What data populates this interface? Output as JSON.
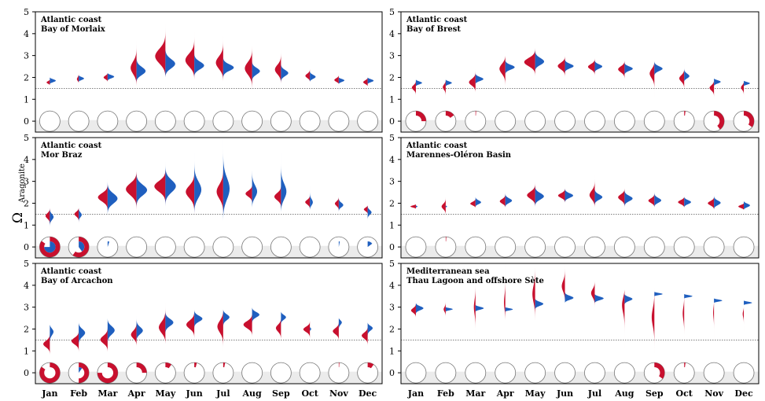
{
  "colors": {
    "red": "#c8102e",
    "blue": "#1f5fbf",
    "band": "#ebebeb",
    "ref": "#555555",
    "edge_blue": "#1f5fbf"
  },
  "y_axis_label_main": "Ω",
  "y_axis_label_sub": "Aragonite",
  "chart_data": [
    {
      "type": "violin",
      "panel": "top-left",
      "title_line1": "Atlantic coast",
      "title_line2": "Bay of Morlaix",
      "categories": [
        "Jan",
        "Feb",
        "Mar",
        "Apr",
        "May",
        "Jun",
        "Jul",
        "Aug",
        "Sep",
        "Oct",
        "Nov",
        "Dec"
      ],
      "ylim": [
        -0.5,
        5
      ],
      "yticks": [
        0,
        1,
        2,
        3,
        4,
        5
      ],
      "ref_line": 1.5,
      "red_center": [
        1.75,
        1.85,
        2.0,
        2.35,
        2.85,
        2.7,
        2.6,
        2.4,
        2.3,
        2.05,
        1.85,
        1.75
      ],
      "blue_center": [
        1.85,
        1.95,
        2.05,
        2.2,
        2.55,
        2.5,
        2.45,
        2.3,
        2.2,
        2.0,
        1.9,
        1.85
      ],
      "red_min": [
        1.65,
        1.75,
        1.8,
        1.6,
        2.0,
        1.9,
        1.8,
        1.4,
        1.7,
        1.8,
        1.7,
        1.6
      ],
      "red_max": [
        1.9,
        2.2,
        2.2,
        3.7,
        4.5,
        4.1,
        3.9,
        3.5,
        3.3,
        2.4,
        2.1,
        2.0
      ],
      "blue_min": [
        1.7,
        1.8,
        1.85,
        1.8,
        2.0,
        2.0,
        1.9,
        1.7,
        1.7,
        1.8,
        1.7,
        1.7
      ],
      "blue_max": [
        2.0,
        2.1,
        2.2,
        3.2,
        3.6,
        3.3,
        3.0,
        2.8,
        2.7,
        2.3,
        2.0,
        2.0
      ],
      "red_width": [
        0.25,
        0.18,
        0.3,
        0.5,
        0.9,
        0.75,
        0.6,
        0.55,
        0.5,
        0.35,
        0.35,
        0.35
      ],
      "blue_width": [
        0.45,
        0.4,
        0.5,
        0.9,
        0.85,
        0.8,
        0.8,
        0.6,
        0.55,
        0.45,
        0.45,
        0.45
      ],
      "undersat_fraction": [
        0,
        0,
        0,
        0,
        0,
        0,
        0,
        0,
        0,
        0,
        0,
        0
      ],
      "undersat_inner_fraction": [
        0,
        0,
        0,
        0,
        0,
        0,
        0,
        0,
        0,
        0,
        0,
        0
      ]
    },
    {
      "type": "violin",
      "panel": "top-right",
      "title_line1": "Atlantic coast",
      "title_line2": "Bay of Brest",
      "categories": [
        "Jan",
        "Feb",
        "Mar",
        "Apr",
        "May",
        "Jun",
        "Jul",
        "Aug",
        "Sep",
        "Oct",
        "Nov",
        "Dec"
      ],
      "ylim": [
        -0.5,
        5
      ],
      "yticks": [
        0,
        1,
        2,
        3,
        4,
        5
      ],
      "ref_line": 1.5,
      "red_center": [
        1.55,
        1.6,
        1.75,
        2.5,
        2.7,
        2.55,
        2.5,
        2.4,
        2.3,
        2.0,
        1.55,
        1.6
      ],
      "blue_center": [
        1.75,
        1.75,
        1.9,
        2.45,
        2.65,
        2.5,
        2.5,
        2.4,
        2.4,
        2.0,
        1.85,
        1.75
      ],
      "red_min": [
        1.1,
        1.0,
        1.3,
        1.3,
        2.0,
        1.9,
        2.0,
        1.8,
        1.1,
        1.3,
        1.0,
        1.0
      ],
      "red_max": [
        1.9,
        1.9,
        2.4,
        3.0,
        3.4,
        3.0,
        2.9,
        2.8,
        2.7,
        2.4,
        1.9,
        1.8
      ],
      "blue_min": [
        1.6,
        1.6,
        1.7,
        2.1,
        2.3,
        2.2,
        2.2,
        2.1,
        2.0,
        1.8,
        1.6,
        1.6
      ],
      "blue_max": [
        1.9,
        1.9,
        2.2,
        2.9,
        3.5,
        2.9,
        2.8,
        2.7,
        2.8,
        2.6,
        1.95,
        1.85
      ],
      "red_width": [
        0.3,
        0.25,
        0.5,
        0.55,
        0.8,
        0.55,
        0.5,
        0.5,
        0.5,
        0.4,
        0.35,
        0.3
      ],
      "blue_width": [
        0.45,
        0.45,
        0.6,
        0.7,
        0.85,
        0.65,
        0.55,
        0.6,
        0.6,
        0.55,
        0.55,
        0.45
      ],
      "undersat_fraction": [
        0.25,
        0.15,
        0.01,
        0,
        0,
        0,
        0,
        0,
        0,
        0.02,
        0.4,
        0.35
      ],
      "undersat_inner_fraction": [
        0,
        0,
        0,
        0,
        0,
        0,
        0,
        0,
        0,
        0,
        0,
        0
      ]
    },
    {
      "type": "violin",
      "panel": "middle-left",
      "title_line1": "Atlantic coast",
      "title_line2": "Mor Braz",
      "categories": [
        "Jan",
        "Feb",
        "Mar",
        "Apr",
        "May",
        "Jun",
        "Jul",
        "Aug",
        "Sep",
        "Oct",
        "Nov",
        "Dec"
      ],
      "ylim": [
        -0.5,
        5
      ],
      "yticks": [
        0,
        1,
        2,
        3,
        4,
        5
      ],
      "ref_line": 1.5,
      "red_center": [
        1.45,
        1.55,
        2.3,
        2.7,
        2.8,
        2.55,
        2.5,
        2.45,
        2.3,
        2.05,
        2.0,
        1.75
      ],
      "blue_center": [
        1.4,
        1.5,
        2.2,
        2.6,
        2.75,
        2.5,
        2.5,
        2.4,
        2.35,
        1.95,
        1.9,
        1.6
      ],
      "red_min": [
        0.9,
        1.0,
        1.5,
        1.5,
        1.8,
        1.4,
        1.4,
        1.9,
        1.7,
        1.7,
        1.6,
        1.5
      ],
      "red_max": [
        1.8,
        1.8,
        2.9,
        3.5,
        3.6,
        3.5,
        3.8,
        2.9,
        2.9,
        2.4,
        2.3,
        1.9
      ],
      "blue_min": [
        0.8,
        1.0,
        1.4,
        1.7,
        1.8,
        1.5,
        1.2,
        1.8,
        1.6,
        1.7,
        1.6,
        1.2
      ],
      "blue_max": [
        1.8,
        1.8,
        3.1,
        3.5,
        3.9,
        4.3,
        4.9,
        3.9,
        4.3,
        2.8,
        2.3,
        1.9
      ],
      "red_width": [
        0.35,
        0.4,
        0.75,
        0.85,
        0.85,
        0.65,
        0.5,
        0.5,
        0.5,
        0.35,
        0.3,
        0.3
      ],
      "blue_width": [
        0.3,
        0.25,
        0.75,
        0.8,
        0.8,
        0.6,
        0.55,
        0.5,
        0.55,
        0.35,
        0.35,
        0.3
      ],
      "undersat_fraction": [
        0.85,
        0.6,
        0,
        0,
        0,
        0,
        0,
        0,
        0,
        0,
        0,
        0
      ],
      "undersat_inner_fraction": [
        0.75,
        0.4,
        0.05,
        0,
        0,
        0,
        0,
        0,
        0,
        0,
        0.03,
        0.15
      ]
    },
    {
      "type": "violin",
      "panel": "middle-right",
      "title_line1": "Atlantic coast",
      "title_line2": "Marennes-Oléron Basin",
      "categories": [
        "Jan",
        "Feb",
        "Mar",
        "Apr",
        "May",
        "Jun",
        "Jul",
        "Aug",
        "Sep",
        "Oct",
        "Nov",
        "Dec"
      ],
      "ylim": [
        -0.5,
        5
      ],
      "yticks": [
        0,
        1,
        2,
        3,
        4,
        5
      ],
      "ref_line": 1.5,
      "red_center": [
        1.85,
        1.85,
        1.95,
        2.05,
        2.35,
        2.35,
        2.3,
        2.3,
        2.1,
        2.05,
        2.0,
        1.85
      ],
      "blue_center": [
        1.85,
        1.85,
        2.0,
        2.1,
        2.3,
        2.35,
        2.25,
        2.2,
        2.1,
        2.05,
        2.0,
        1.9
      ],
      "red_min": [
        1.75,
        1.4,
        1.8,
        1.8,
        1.8,
        2.0,
        1.8,
        1.7,
        1.8,
        1.8,
        1.7,
        1.7
      ],
      "red_max": [
        1.95,
        2.3,
        2.2,
        2.5,
        3.0,
        2.7,
        3.3,
        2.7,
        2.5,
        2.3,
        2.3,
        2.0
      ],
      "blue_min": [
        1.8,
        1.8,
        1.85,
        1.8,
        1.8,
        2.0,
        1.9,
        1.8,
        1.8,
        1.8,
        1.7,
        1.7
      ],
      "blue_max": [
        1.9,
        1.9,
        2.3,
        2.5,
        2.9,
        2.7,
        2.8,
        2.7,
        2.6,
        2.3,
        2.4,
        2.1
      ],
      "red_width": [
        0.4,
        0.3,
        0.4,
        0.45,
        0.6,
        0.5,
        0.45,
        0.5,
        0.45,
        0.45,
        0.45,
        0.4
      ],
      "blue_width": [
        0.12,
        0.1,
        0.45,
        0.5,
        0.65,
        0.6,
        0.6,
        0.6,
        0.55,
        0.5,
        0.5,
        0.45
      ],
      "undersat_fraction": [
        0,
        0.01,
        0,
        0,
        0,
        0,
        0,
        0,
        0,
        0,
        0,
        0
      ],
      "undersat_inner_fraction": [
        0,
        0,
        0,
        0,
        0,
        0,
        0,
        0,
        0,
        0,
        0,
        0
      ]
    },
    {
      "type": "violin",
      "panel": "bottom-left",
      "title_line1": "Atlantic coast",
      "title_line2": "Bay of Arcachon",
      "categories": [
        "Jan",
        "Feb",
        "Mar",
        "Apr",
        "May",
        "Jun",
        "Jul",
        "Aug",
        "Sep",
        "Oct",
        "Nov",
        "Dec"
      ],
      "ylim": [
        -0.5,
        5
      ],
      "yticks": [
        0,
        1,
        2,
        3,
        4,
        5
      ],
      "ref_line": 1.5,
      "red_center": [
        1.3,
        1.45,
        1.5,
        1.7,
        2.0,
        2.2,
        2.2,
        2.2,
        2.1,
        2.0,
        1.9,
        1.7
      ],
      "blue_center": [
        2.0,
        1.9,
        2.0,
        1.9,
        2.3,
        2.5,
        2.6,
        2.7,
        2.6,
        2.0,
        2.4,
        2.1
      ],
      "red_min": [
        0.8,
        0.9,
        0.9,
        1.2,
        1.3,
        1.5,
        0.9,
        1.6,
        1.3,
        1.5,
        1.4,
        1.2
      ],
      "red_max": [
        1.9,
        2.0,
        2.2,
        2.5,
        3.2,
        2.9,
        2.9,
        2.8,
        2.5,
        2.4,
        2.4,
        2.2
      ],
      "blue_min": [
        1.0,
        1.0,
        1.1,
        1.4,
        1.7,
        1.9,
        1.9,
        2.1,
        2.0,
        1.9,
        1.7,
        1.5
      ],
      "blue_max": [
        2.2,
        2.3,
        2.5,
        2.6,
        2.9,
        2.9,
        2.9,
        3.0,
        2.8,
        2.1,
        2.5,
        2.3
      ],
      "red_width": [
        0.5,
        0.55,
        0.55,
        0.45,
        0.55,
        0.6,
        0.5,
        0.65,
        0.45,
        0.5,
        0.45,
        0.45
      ],
      "blue_width": [
        0.55,
        0.6,
        0.6,
        0.5,
        0.6,
        0.65,
        0.6,
        0.65,
        0.55,
        0.1,
        0.55,
        0.55
      ],
      "undersat_fraction": [
        0.85,
        0.5,
        0.75,
        0.25,
        0.1,
        0.04,
        0.03,
        0,
        0,
        0,
        0.01,
        0.1
      ],
      "undersat_inner_fraction": [
        0,
        0.1,
        0,
        0,
        0,
        0,
        0,
        0,
        0,
        0,
        0,
        0
      ]
    },
    {
      "type": "violin",
      "panel": "bottom-right",
      "title_line1": "Mediterranean sea",
      "title_line2": "Thau Lagoon and offshore Sète",
      "categories": [
        "Jan",
        "Feb",
        "Mar",
        "Apr",
        "May",
        "Jun",
        "Jul",
        "Aug",
        "Sep",
        "Oct",
        "Nov",
        "Dec"
      ],
      "ylim": [
        -0.5,
        5
      ],
      "yticks": [
        0,
        1,
        2,
        3,
        4,
        5
      ],
      "ref_line": 1.5,
      "red_center": [
        2.85,
        2.9,
        3.0,
        3.0,
        3.6,
        3.9,
        3.7,
        3.4,
        2.6,
        2.8,
        2.9,
        2.8
      ],
      "blue_center": [
        2.95,
        2.95,
        2.95,
        2.9,
        3.15,
        3.4,
        3.4,
        3.4,
        3.6,
        3.5,
        3.3,
        3.2
      ],
      "red_min": [
        2.5,
        2.5,
        1.8,
        2.4,
        2.2,
        3.2,
        2.8,
        1.1,
        0.9,
        1.4,
        1.5,
        1.9
      ],
      "red_max": [
        3.2,
        3.3,
        4.2,
        5.0,
        5.0,
        5.0,
        4.2,
        3.8,
        3.9,
        3.6,
        3.3,
        3.0
      ],
      "blue_min": [
        2.7,
        2.8,
        2.8,
        2.8,
        2.9,
        3.2,
        3.2,
        3.1,
        3.5,
        3.4,
        3.2,
        3.1
      ],
      "blue_max": [
        3.2,
        3.0,
        3.1,
        3.0,
        3.4,
        3.7,
        3.6,
        3.6,
        3.7,
        3.6,
        3.4,
        3.3
      ],
      "red_width": [
        0.35,
        0.15,
        0.12,
        0.15,
        0.2,
        0.25,
        0.3,
        0.4,
        0.2,
        0.12,
        0.1,
        0.15
      ],
      "blue_width": [
        0.55,
        0.55,
        0.6,
        0.55,
        0.6,
        0.65,
        0.65,
        0.6,
        0.6,
        0.6,
        0.6,
        0.6
      ],
      "undersat_fraction": [
        0,
        0,
        0,
        0,
        0,
        0,
        0,
        0,
        0.35,
        0.02,
        0,
        0
      ],
      "undersat_inner_fraction": [
        0,
        0,
        0,
        0,
        0,
        0,
        0,
        0,
        0,
        0,
        0,
        0
      ]
    }
  ]
}
